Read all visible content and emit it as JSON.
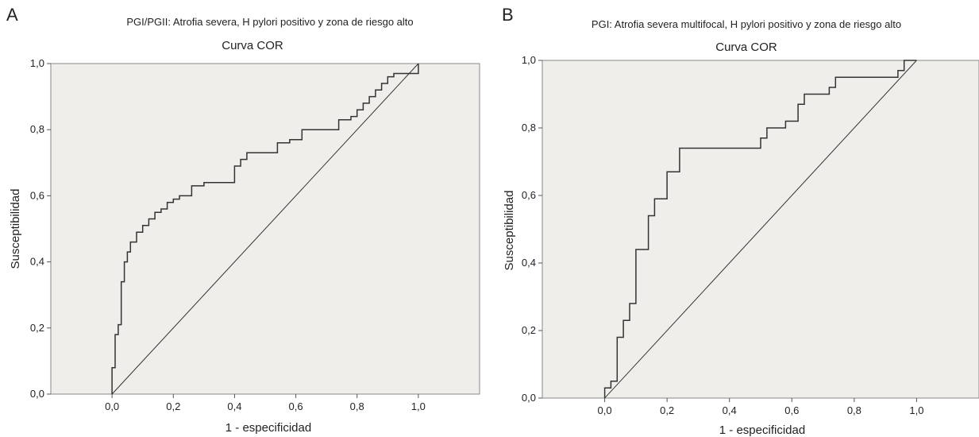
{
  "chart_data": [
    {
      "type": "line",
      "panel": "A",
      "suptitle": "PGI/PGII: Atrofia severa, H pylori positivo y zona de riesgo alto",
      "title": "Curva COR",
      "xlabel": "1 - especificidad",
      "ylabel": "Susceptibilidad",
      "xlim": [
        -0.2,
        1.2
      ],
      "ylim": [
        0.0,
        1.0
      ],
      "xticks": [
        "0,0",
        "0,2",
        "0,4",
        "0,6",
        "0,8",
        "1,0"
      ],
      "yticks": [
        "0,0",
        "0,2",
        "0,4",
        "0,6",
        "0,8",
        "1,0"
      ],
      "grid": false,
      "legend": "none",
      "series": [
        {
          "x": [
            0.0,
            0.0,
            0.01,
            0.01,
            0.02,
            0.02,
            0.03,
            0.03,
            0.04,
            0.04,
            0.05,
            0.05,
            0.06,
            0.06,
            0.08,
            0.08,
            0.1,
            0.1,
            0.12,
            0.12,
            0.14,
            0.14,
            0.16,
            0.16,
            0.18,
            0.18,
            0.2,
            0.2,
            0.22,
            0.22,
            0.26,
            0.26,
            0.3,
            0.3,
            0.4,
            0.4,
            0.42,
            0.42,
            0.44,
            0.44,
            0.54,
            0.54,
            0.58,
            0.58,
            0.62,
            0.62,
            0.74,
            0.74,
            0.78,
            0.78,
            0.8,
            0.8,
            0.82,
            0.82,
            0.84,
            0.84,
            0.86,
            0.86,
            0.88,
            0.88,
            0.9,
            0.9,
            0.92,
            0.92,
            1.0,
            1.0
          ],
          "y": [
            0.0,
            0.08,
            0.08,
            0.18,
            0.18,
            0.21,
            0.21,
            0.34,
            0.34,
            0.4,
            0.4,
            0.43,
            0.43,
            0.46,
            0.46,
            0.49,
            0.49,
            0.51,
            0.51,
            0.53,
            0.53,
            0.55,
            0.55,
            0.56,
            0.56,
            0.58,
            0.58,
            0.59,
            0.59,
            0.6,
            0.6,
            0.63,
            0.63,
            0.64,
            0.64,
            0.69,
            0.69,
            0.71,
            0.71,
            0.73,
            0.73,
            0.76,
            0.76,
            0.77,
            0.77,
            0.8,
            0.8,
            0.83,
            0.83,
            0.84,
            0.84,
            0.86,
            0.86,
            0.88,
            0.88,
            0.9,
            0.9,
            0.92,
            0.92,
            0.94,
            0.94,
            0.96,
            0.96,
            0.97,
            0.97,
            1.0
          ]
        },
        {
          "x": [
            0.0,
            1.0
          ],
          "y": [
            0.0,
            1.0
          ]
        }
      ]
    },
    {
      "type": "line",
      "panel": "B",
      "suptitle": "PGI: Atrofia severa multifocal, H pylori positivo y zona de riesgo alto",
      "title": "Curva COR",
      "xlabel": "1 - especificidad",
      "ylabel": "Susceptibilidad",
      "xlim": [
        -0.2,
        1.2
      ],
      "ylim": [
        0.0,
        1.0
      ],
      "xticks": [
        "0,0",
        "0,2",
        "0,4",
        "0,6",
        "0,8",
        "1,0"
      ],
      "yticks": [
        "0,0",
        "0,2",
        "0,4",
        "0,6",
        "0,8",
        "1,0"
      ],
      "grid": false,
      "legend": "none",
      "series": [
        {
          "x": [
            0.0,
            0.0,
            0.02,
            0.02,
            0.04,
            0.04,
            0.06,
            0.06,
            0.08,
            0.08,
            0.1,
            0.1,
            0.14,
            0.14,
            0.16,
            0.16,
            0.18,
            0.18,
            0.2,
            0.2,
            0.22,
            0.22,
            0.24,
            0.24,
            0.5,
            0.5,
            0.52,
            0.52,
            0.58,
            0.58,
            0.62,
            0.62,
            0.64,
            0.64,
            0.68,
            0.68,
            0.72,
            0.72,
            0.74,
            0.74,
            0.94,
            0.94,
            0.96,
            0.96,
            1.0
          ],
          "y": [
            0.0,
            0.03,
            0.03,
            0.05,
            0.05,
            0.18,
            0.18,
            0.23,
            0.23,
            0.28,
            0.28,
            0.44,
            0.44,
            0.54,
            0.54,
            0.59,
            0.59,
            0.59,
            0.59,
            0.67,
            0.67,
            0.67,
            0.67,
            0.74,
            0.74,
            0.77,
            0.77,
            0.8,
            0.8,
            0.82,
            0.82,
            0.87,
            0.87,
            0.9,
            0.9,
            0.9,
            0.9,
            0.92,
            0.92,
            0.95,
            0.95,
            0.97,
            0.97,
            1.0,
            1.0
          ]
        },
        {
          "x": [
            0.0,
            1.0
          ],
          "y": [
            0.0,
            1.0
          ]
        }
      ]
    }
  ]
}
